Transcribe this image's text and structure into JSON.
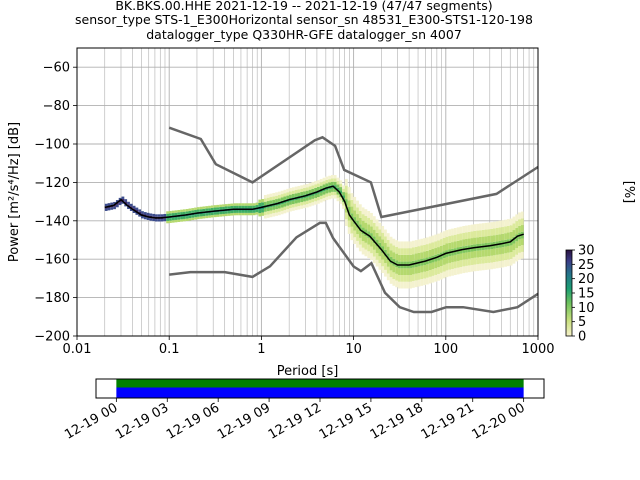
{
  "chart_data": [
    {
      "type": "heatmap",
      "title_lines": [
        "BK.BKS.00.HHE   2021-12-19 -- 2021-12-19  (47/47 segments)",
        "sensor_type STS-1_E300Horizontal sensor_sn 48531_E300-STS1-120-198",
        "datalogger_type Q330HR-GFE datalogger_sn 4007"
      ],
      "xlabel": "Period [s]",
      "ylabel": "Power [m²/s⁴/Hz] [dB]",
      "xscale": "log",
      "xlim": [
        0.01,
        1000
      ],
      "ylim": [
        -200,
        -50
      ],
      "x_ticks": [
        0.01,
        0.1,
        1,
        10,
        100,
        1000
      ],
      "x_tick_labels": [
        "0.01",
        "0.1",
        "1",
        "10",
        "100",
        "1000"
      ],
      "y_ticks": [
        -200,
        -180,
        -160,
        -140,
        -120,
        -100,
        -80,
        -60
      ],
      "y_tick_labels": [
        "−200",
        "−180",
        "−160",
        "−140",
        "−120",
        "−100",
        "−80",
        "−60"
      ],
      "grid": true,
      "colorbar": {
        "label": "[%]",
        "min": 0,
        "max": 30,
        "ticks": [
          0,
          5,
          10,
          15,
          20,
          25,
          30
        ],
        "tick_labels": [
          "0",
          "5",
          "10",
          "15",
          "20",
          "25",
          "30"
        ]
      },
      "noise_model_high": {
        "x": [
          0.1,
          0.22,
          0.32,
          0.8,
          3.8,
          4.6,
          6.3,
          7.9,
          15.4,
          20,
          354.8,
          1000
        ],
        "y": [
          -91.5,
          -97.4,
          -110.5,
          -120,
          -98,
          -96.5,
          -101,
          -113.5,
          -120,
          -138,
          -126,
          -112
        ]
      },
      "noise_model_low": {
        "x": [
          0.1,
          0.17,
          0.4,
          0.8,
          1.24,
          2.4,
          4.3,
          5,
          6,
          10,
          12,
          15.6,
          21.9,
          31.6,
          45,
          70,
          101,
          154,
          328,
          600,
          1000
        ],
        "y": [
          -168,
          -166.7,
          -166.7,
          -169.2,
          -163.7,
          -148.6,
          -141.1,
          -141.1,
          -149,
          -163.8,
          -166.2,
          -162.1,
          -177.5,
          -185,
          -187.5,
          -187.5,
          -185,
          -185,
          -187.5,
          -185,
          -178
        ]
      },
      "mean_psd": {
        "x": [
          0.02,
          0.025,
          0.03,
          0.035,
          0.04,
          0.05,
          0.06,
          0.07,
          0.08,
          0.1,
          0.15,
          0.2,
          0.3,
          0.5,
          0.8,
          1,
          1.5,
          2,
          3,
          4,
          5,
          6,
          7,
          8,
          9,
          10,
          12,
          15,
          20,
          25,
          30,
          40,
          60,
          80,
          100,
          150,
          200,
          300,
          400,
          500,
          600,
          700
        ],
        "y": [
          -133,
          -132,
          -129,
          -132,
          -134,
          -137,
          -138,
          -138.5,
          -138.5,
          -138,
          -137,
          -136,
          -135,
          -134,
          -134,
          -133,
          -131,
          -129,
          -127,
          -125,
          -123,
          -122,
          -125,
          -130,
          -137,
          -140,
          -145,
          -148,
          -155,
          -161,
          -163,
          -163,
          -161,
          -159,
          -157,
          -155,
          -154,
          -153,
          -152,
          -151,
          -148,
          -147
        ]
      },
      "time_coverage": {
        "tick_labels": [
          "12-19 00",
          "12-19 03",
          "12-19 06",
          "12-19 09",
          "12-19 12",
          "12-19 15",
          "12-19 18",
          "12-19 21",
          "12-20 00"
        ],
        "tick_hours": [
          0,
          3,
          6,
          9,
          12,
          15,
          18,
          21,
          24
        ],
        "range_hours": [
          -1.2,
          25.2
        ],
        "segments_hours": [
          [
            0,
            24
          ]
        ],
        "colors": {
          "data": "#0000ff",
          "gaps_free": "#008000"
        }
      }
    }
  ]
}
